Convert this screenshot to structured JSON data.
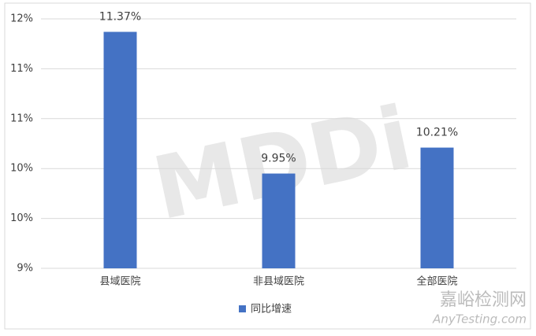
{
  "chart_data": {
    "type": "bar",
    "categories": [
      "县域医院",
      "非县域医院",
      "全部医院"
    ],
    "series": [
      {
        "name": "同比增速",
        "color": "#4472c4",
        "values": [
          11.37,
          9.95,
          10.21
        ],
        "value_labels": [
          "11.37%",
          "9.95%",
          "10.21%"
        ]
      }
    ],
    "ylim": [
      9,
      11.5
    ],
    "yticks": [
      {
        "value": 9,
        "label": "9%"
      },
      {
        "value": 9.5,
        "label": "10%"
      },
      {
        "value": 10,
        "label": "10%"
      },
      {
        "value": 10.5,
        "label": "11%"
      },
      {
        "value": 11,
        "label": "11%"
      },
      {
        "value": 11.5,
        "label": "12%"
      }
    ],
    "grid": true,
    "legend": "bottom"
  },
  "watermarks": {
    "logo": "MDDi",
    "site": "嘉峪检测网",
    "url": "AnyTesting.com"
  }
}
